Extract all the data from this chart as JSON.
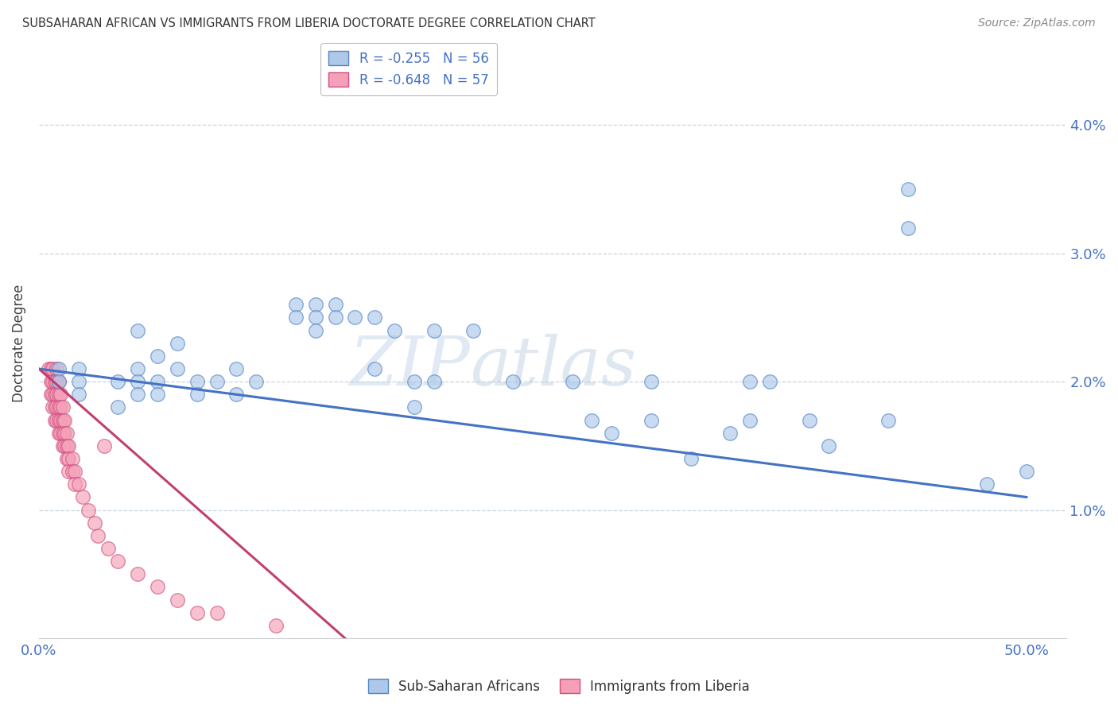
{
  "title": "SUBSAHARAN AFRICAN VS IMMIGRANTS FROM LIBERIA DOCTORATE DEGREE CORRELATION CHART",
  "source": "Source: ZipAtlas.com",
  "ylabel": "Doctorate Degree",
  "right_yticks": [
    "1.0%",
    "2.0%",
    "3.0%",
    "4.0%"
  ],
  "right_ytick_vals": [
    0.01,
    0.02,
    0.03,
    0.04
  ],
  "legend_blue_label": "R = -0.255   N = 56",
  "legend_pink_label": "R = -0.648   N = 57",
  "legend_sub_label": "Sub-Saharan Africans",
  "legend_imm_label": "Immigrants from Liberia",
  "blue_color": "#adc8e8",
  "pink_color": "#f5a0b8",
  "blue_edge_color": "#5585c8",
  "pink_edge_color": "#d05080",
  "blue_line_color": "#4472c4",
  "pink_line_color": "#c04070",
  "blue_scatter": [
    [
      0.01,
      0.021
    ],
    [
      0.01,
      0.02
    ],
    [
      0.02,
      0.021
    ],
    [
      0.02,
      0.02
    ],
    [
      0.02,
      0.019
    ],
    [
      0.04,
      0.02
    ],
    [
      0.04,
      0.018
    ],
    [
      0.05,
      0.024
    ],
    [
      0.05,
      0.021
    ],
    [
      0.05,
      0.02
    ],
    [
      0.05,
      0.019
    ],
    [
      0.06,
      0.022
    ],
    [
      0.06,
      0.02
    ],
    [
      0.06,
      0.019
    ],
    [
      0.07,
      0.023
    ],
    [
      0.07,
      0.021
    ],
    [
      0.08,
      0.02
    ],
    [
      0.08,
      0.019
    ],
    [
      0.09,
      0.02
    ],
    [
      0.1,
      0.021
    ],
    [
      0.1,
      0.019
    ],
    [
      0.11,
      0.02
    ],
    [
      0.13,
      0.026
    ],
    [
      0.13,
      0.025
    ],
    [
      0.14,
      0.026
    ],
    [
      0.14,
      0.025
    ],
    [
      0.14,
      0.024
    ],
    [
      0.15,
      0.026
    ],
    [
      0.15,
      0.025
    ],
    [
      0.16,
      0.025
    ],
    [
      0.17,
      0.025
    ],
    [
      0.17,
      0.021
    ],
    [
      0.18,
      0.024
    ],
    [
      0.19,
      0.02
    ],
    [
      0.19,
      0.018
    ],
    [
      0.2,
      0.024
    ],
    [
      0.2,
      0.02
    ],
    [
      0.22,
      0.024
    ],
    [
      0.24,
      0.02
    ],
    [
      0.27,
      0.02
    ],
    [
      0.28,
      0.017
    ],
    [
      0.29,
      0.016
    ],
    [
      0.31,
      0.02
    ],
    [
      0.31,
      0.017
    ],
    [
      0.33,
      0.014
    ],
    [
      0.35,
      0.016
    ],
    [
      0.36,
      0.02
    ],
    [
      0.36,
      0.017
    ],
    [
      0.37,
      0.02
    ],
    [
      0.39,
      0.017
    ],
    [
      0.4,
      0.015
    ],
    [
      0.43,
      0.017
    ],
    [
      0.44,
      0.035
    ],
    [
      0.44,
      0.032
    ],
    [
      0.48,
      0.012
    ],
    [
      0.5,
      0.013
    ]
  ],
  "pink_scatter": [
    [
      0.005,
      0.021
    ],
    [
      0.006,
      0.021
    ],
    [
      0.006,
      0.02
    ],
    [
      0.006,
      0.019
    ],
    [
      0.007,
      0.021
    ],
    [
      0.007,
      0.02
    ],
    [
      0.007,
      0.019
    ],
    [
      0.007,
      0.018
    ],
    [
      0.008,
      0.02
    ],
    [
      0.008,
      0.019
    ],
    [
      0.008,
      0.018
    ],
    [
      0.008,
      0.017
    ],
    [
      0.009,
      0.021
    ],
    [
      0.009,
      0.02
    ],
    [
      0.009,
      0.019
    ],
    [
      0.009,
      0.018
    ],
    [
      0.009,
      0.017
    ],
    [
      0.01,
      0.02
    ],
    [
      0.01,
      0.019
    ],
    [
      0.01,
      0.018
    ],
    [
      0.01,
      0.017
    ],
    [
      0.01,
      0.016
    ],
    [
      0.011,
      0.019
    ],
    [
      0.011,
      0.018
    ],
    [
      0.011,
      0.017
    ],
    [
      0.011,
      0.016
    ],
    [
      0.012,
      0.018
    ],
    [
      0.012,
      0.017
    ],
    [
      0.012,
      0.016
    ],
    [
      0.012,
      0.015
    ],
    [
      0.013,
      0.017
    ],
    [
      0.013,
      0.016
    ],
    [
      0.013,
      0.015
    ],
    [
      0.014,
      0.016
    ],
    [
      0.014,
      0.015
    ],
    [
      0.014,
      0.014
    ],
    [
      0.015,
      0.015
    ],
    [
      0.015,
      0.014
    ],
    [
      0.015,
      0.013
    ],
    [
      0.017,
      0.014
    ],
    [
      0.017,
      0.013
    ],
    [
      0.018,
      0.013
    ],
    [
      0.018,
      0.012
    ],
    [
      0.02,
      0.012
    ],
    [
      0.022,
      0.011
    ],
    [
      0.025,
      0.01
    ],
    [
      0.028,
      0.009
    ],
    [
      0.03,
      0.008
    ],
    [
      0.033,
      0.015
    ],
    [
      0.035,
      0.007
    ],
    [
      0.04,
      0.006
    ],
    [
      0.05,
      0.005
    ],
    [
      0.06,
      0.004
    ],
    [
      0.07,
      0.003
    ],
    [
      0.08,
      0.002
    ],
    [
      0.09,
      0.002
    ],
    [
      0.12,
      0.001
    ]
  ],
  "blue_line_x": [
    0.0,
    0.5
  ],
  "blue_line_y": [
    0.021,
    0.011
  ],
  "pink_line_x": [
    0.0,
    0.155
  ],
  "pink_line_y": [
    0.021,
    0.0
  ],
  "xlim": [
    0.0,
    0.52
  ],
  "ylim": [
    0.0,
    0.046
  ],
  "watermark_part1": "ZIP",
  "watermark_part2": "atlas",
  "background_color": "#ffffff",
  "grid_color": "#c8d4e0"
}
